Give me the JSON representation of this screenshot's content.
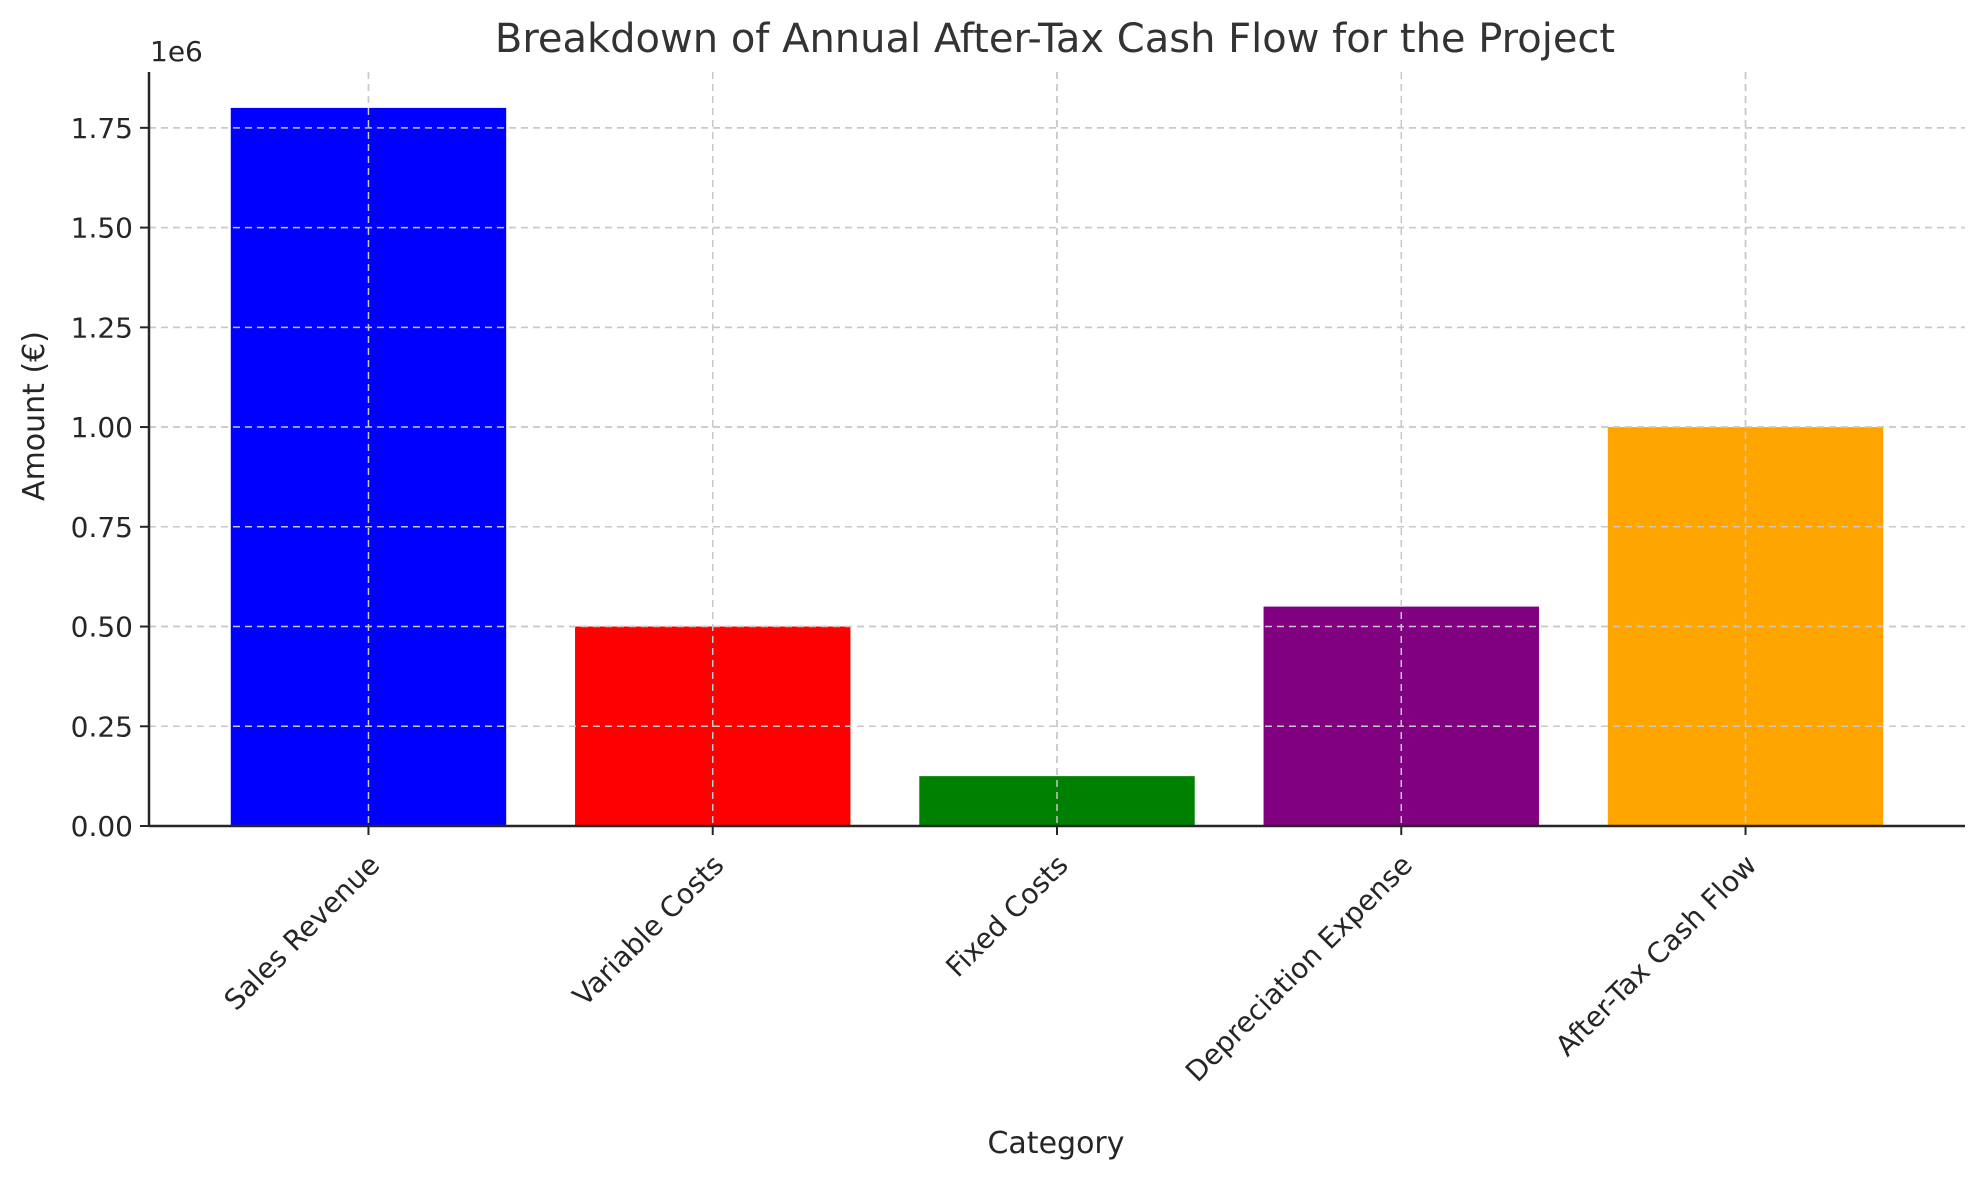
{
  "chart_data": {
    "type": "bar",
    "title": "Breakdown of Annual After-Tax Cash Flow for the Project",
    "xlabel": "Category",
    "ylabel": "Amount (€)",
    "y_offset_label": "1e6",
    "categories": [
      "Sales Revenue",
      "Variable Costs",
      "Fixed Costs",
      "Depreciation Expense",
      "After-Tax Cash Flow"
    ],
    "values": [
      1800000,
      500000,
      125000,
      550000,
      1000000
    ],
    "colors": [
      "#0000ff",
      "#ff0000",
      "#008000",
      "#800080",
      "#ffa500"
    ],
    "ylim": [
      0,
      1890000
    ],
    "yticks": [
      0,
      250000,
      500000,
      750000,
      1000000,
      1250000,
      1500000,
      1750000
    ],
    "ytick_labels": [
      "0.00",
      "0.25",
      "0.50",
      "0.75",
      "1.00",
      "1.25",
      "1.50",
      "1.75"
    ],
    "grid": true,
    "legend": "none"
  }
}
